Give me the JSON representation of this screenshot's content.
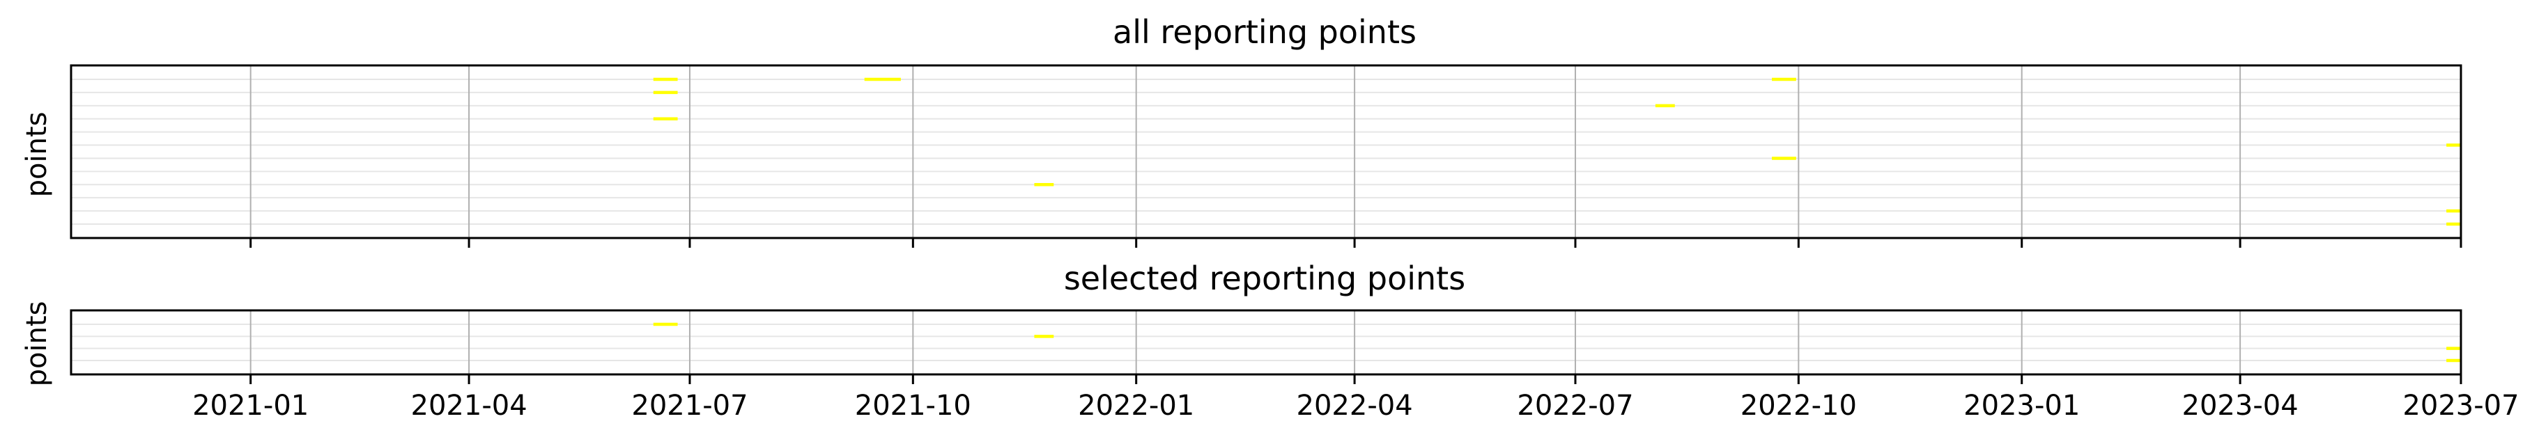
{
  "chart_data": [
    {
      "type": "timeline",
      "title": "all reporting points",
      "xlabel": "",
      "ylabel": "points",
      "x_ticks": [
        "2021-01",
        "2021-04",
        "2021-07",
        "2021-10",
        "2022-01",
        "2022-04",
        "2022-07",
        "2022-10",
        "2023-01",
        "2023-04",
        "2023-07"
      ],
      "x_range": [
        "2020-10-19",
        "2023-07-01"
      ],
      "n_rows": 12,
      "grid": true,
      "event_color": "#ffff00",
      "events": [
        {
          "row": 0,
          "start": "2021-06-16",
          "end": "2021-06-26"
        },
        {
          "row": 0,
          "start": "2021-09-11",
          "end": "2021-09-26"
        },
        {
          "row": 0,
          "start": "2022-09-20",
          "end": "2022-09-30"
        },
        {
          "row": 1,
          "start": "2021-06-16",
          "end": "2021-06-26"
        },
        {
          "row": 2,
          "start": "2022-08-03",
          "end": "2022-08-11"
        },
        {
          "row": 3,
          "start": "2021-06-16",
          "end": "2021-06-26"
        },
        {
          "row": 5,
          "start": "2023-06-25",
          "end": "2023-07-01"
        },
        {
          "row": 6,
          "start": "2022-09-20",
          "end": "2022-09-30"
        },
        {
          "row": 8,
          "start": "2021-11-20",
          "end": "2021-11-28"
        },
        {
          "row": 10,
          "start": "2023-06-25",
          "end": "2023-07-01"
        },
        {
          "row": 11,
          "start": "2023-06-25",
          "end": "2023-07-01"
        }
      ]
    },
    {
      "type": "timeline",
      "title": "selected reporting points",
      "xlabel": "",
      "ylabel": "points",
      "x_ticks": [
        "2021-01",
        "2021-04",
        "2021-07",
        "2021-10",
        "2022-01",
        "2022-04",
        "2022-07",
        "2022-10",
        "2023-01",
        "2023-04",
        "2023-07"
      ],
      "x_range": [
        "2020-10-19",
        "2023-07-01"
      ],
      "n_rows": 4,
      "grid": true,
      "event_color": "#ffff00",
      "events": [
        {
          "row": 0,
          "start": "2021-06-16",
          "end": "2021-06-26"
        },
        {
          "row": 1,
          "start": "2021-11-20",
          "end": "2021-11-28"
        },
        {
          "row": 2,
          "start": "2023-06-25",
          "end": "2023-07-01"
        },
        {
          "row": 3,
          "start": "2023-06-25",
          "end": "2023-07-01"
        }
      ]
    }
  ]
}
